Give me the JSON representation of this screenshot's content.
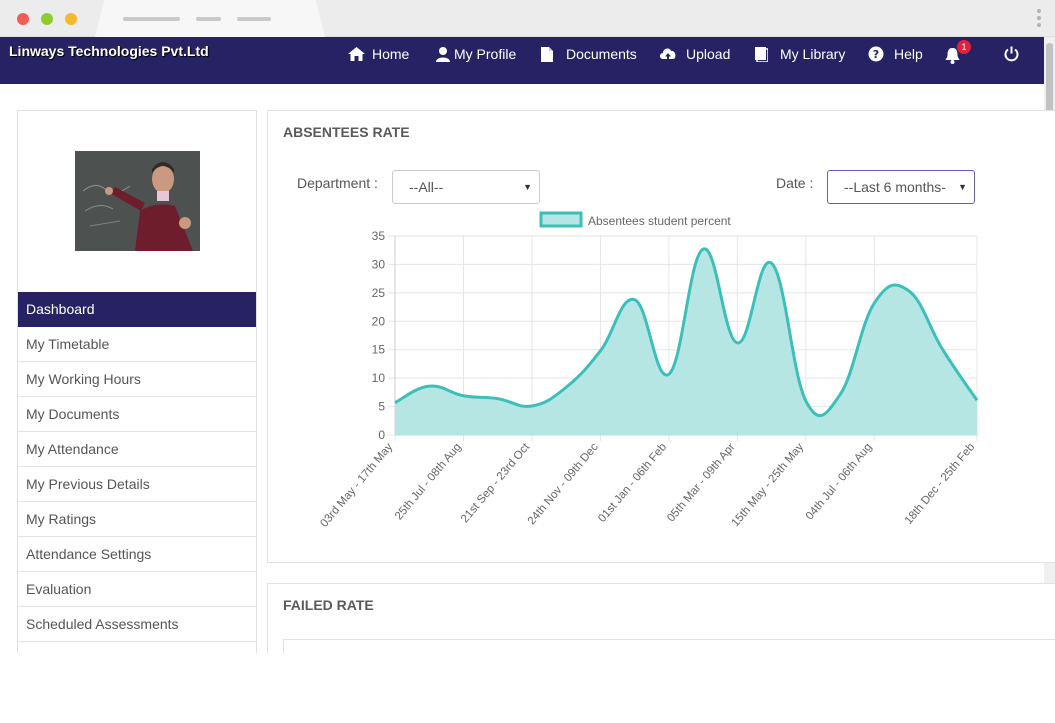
{
  "app": {
    "brand": "Linways Technologies Pvt.Ltd"
  },
  "nav": [
    {
      "label": "Home",
      "icon": "home-icon"
    },
    {
      "label": "My Profile",
      "icon": "user-icon"
    },
    {
      "label": "Documents",
      "icon": "document-icon"
    },
    {
      "label": "Upload",
      "icon": "upload-icon"
    },
    {
      "label": "My Library",
      "icon": "book-icon"
    },
    {
      "label": "Help",
      "icon": "help-icon"
    }
  ],
  "notifications": {
    "count": "1",
    "icon": "bell-icon"
  },
  "power_icon": "power-icon",
  "sidebar": {
    "items": [
      {
        "label": "Dashboard",
        "active": true
      },
      {
        "label": "My Timetable"
      },
      {
        "label": "My Working Hours"
      },
      {
        "label": "My Documents"
      },
      {
        "label": "My Attendance"
      },
      {
        "label": "My Previous Details"
      },
      {
        "label": "My Ratings"
      },
      {
        "label": "Attendance Settings"
      },
      {
        "label": "Evaluation"
      },
      {
        "label": "Scheduled Assessments"
      }
    ]
  },
  "absentees": {
    "title": "ABSENTEES RATE",
    "department_label": "Department :",
    "department_value": "--All--",
    "date_label": "Date :",
    "date_value": "--Last 6 months-"
  },
  "failed": {
    "title": "FAILED RATE"
  },
  "colors": {
    "navbar": "#262263",
    "accent_line": "#3cbfbb",
    "accent_fill": "#b6e6e4",
    "badge": "#e0223a"
  },
  "chart_data": {
    "type": "area",
    "legend": "Absentees student percent",
    "ylim": [
      0,
      35
    ],
    "yticks": [
      0,
      5,
      10,
      15,
      20,
      25,
      30,
      35
    ],
    "xtick_labels": [
      "03rd May - 17th May",
      "25th Jul - 08th Aug",
      "21st Sep - 23rd Oct",
      "24th Nov - 09th Dec",
      "01st Jan - 06th Feb",
      "05th Mar - 09th Apr",
      "15th May - 25th May",
      "04th Jul - 06th Aug",
      "18th Dec - 25th Feb"
    ],
    "values": [
      5.7,
      8.6,
      6.9,
      6.4,
      5.1,
      8.4,
      14.8,
      23.8,
      10.7,
      32.7,
      16.2,
      30.2,
      6.0,
      7.1,
      23.2,
      25.4,
      15.0,
      6.1
    ]
  }
}
